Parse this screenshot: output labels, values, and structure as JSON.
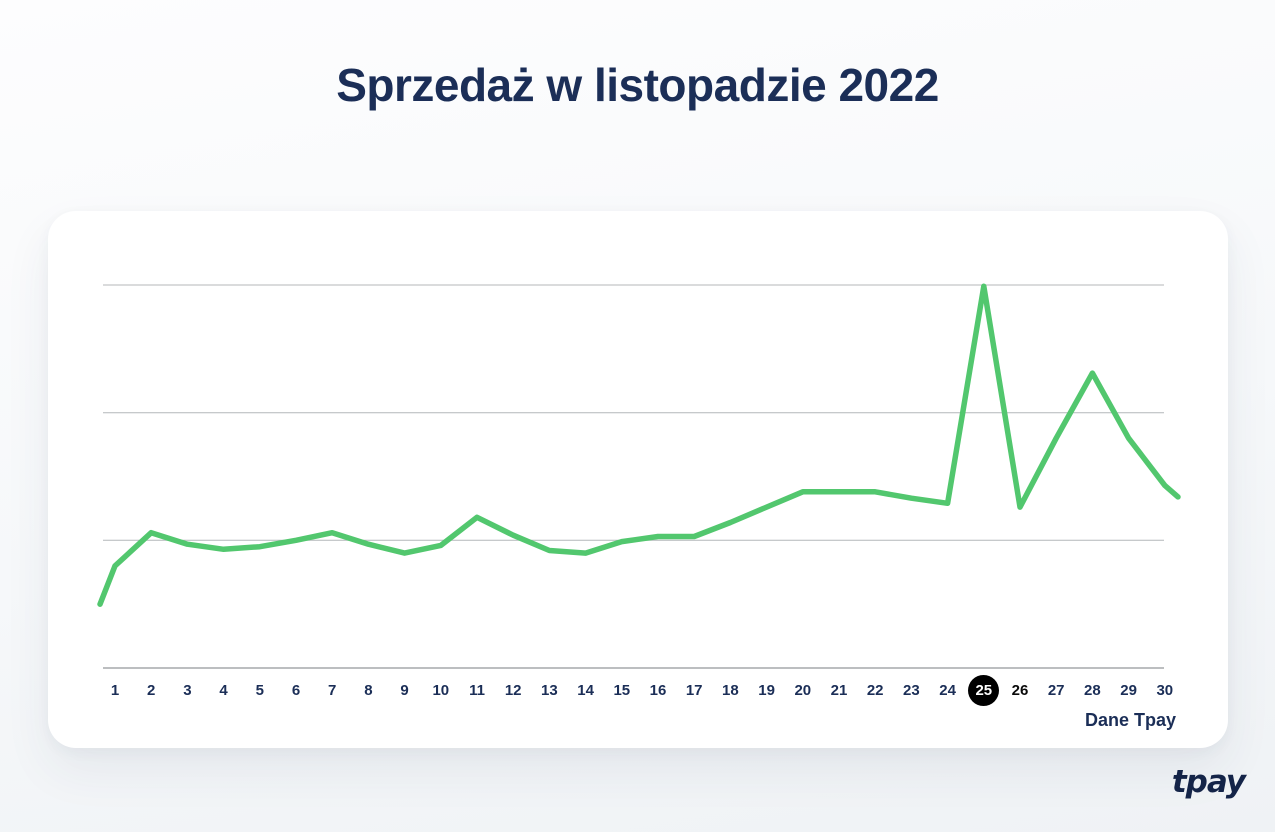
{
  "page": {
    "title": "Sprzedaż w listopadzie 2022",
    "source_label": "Dane Tpay",
    "brand_logo": "tpay"
  },
  "colors": {
    "line": "#52c76e",
    "navy": "#1b2e57",
    "grid": "#b4b7ba",
    "axis": "#a6a9ac",
    "highlight_bg": "#000000",
    "highlight_text": "#ffffff"
  },
  "chart_data": {
    "type": "line",
    "title": "Sprzedaż w listopadzie 2022",
    "xlabel": "",
    "ylabel": "",
    "categories": [
      1,
      2,
      3,
      4,
      5,
      6,
      7,
      8,
      9,
      10,
      11,
      12,
      13,
      14,
      15,
      16,
      17,
      18,
      19,
      20,
      21,
      22,
      23,
      24,
      25,
      26,
      27,
      28,
      29,
      30
    ],
    "values": [
      0.8,
      1.06,
      0.97,
      0.93,
      0.95,
      1.0,
      1.06,
      0.97,
      0.9,
      0.96,
      1.18,
      1.04,
      0.92,
      0.9,
      0.99,
      1.03,
      1.03,
      1.14,
      1.26,
      1.38,
      1.38,
      1.38,
      1.33,
      1.29,
      2.99,
      1.26,
      1.8,
      2.31,
      1.8,
      1.43
    ],
    "edge_points": {
      "lead_value": 0.5,
      "tail_value": 1.34
    },
    "ylim": [
      0,
      3.4
    ],
    "gridlines": [
      1,
      2,
      3
    ],
    "y_tick_labels_visible": false,
    "grid": true,
    "legend": false,
    "highlighted_day": 25,
    "highlighted_day_style": "white number on black circle",
    "black_label_day": 26,
    "units": "relative (horizontal gridlines at 1, 2 and 3)"
  }
}
